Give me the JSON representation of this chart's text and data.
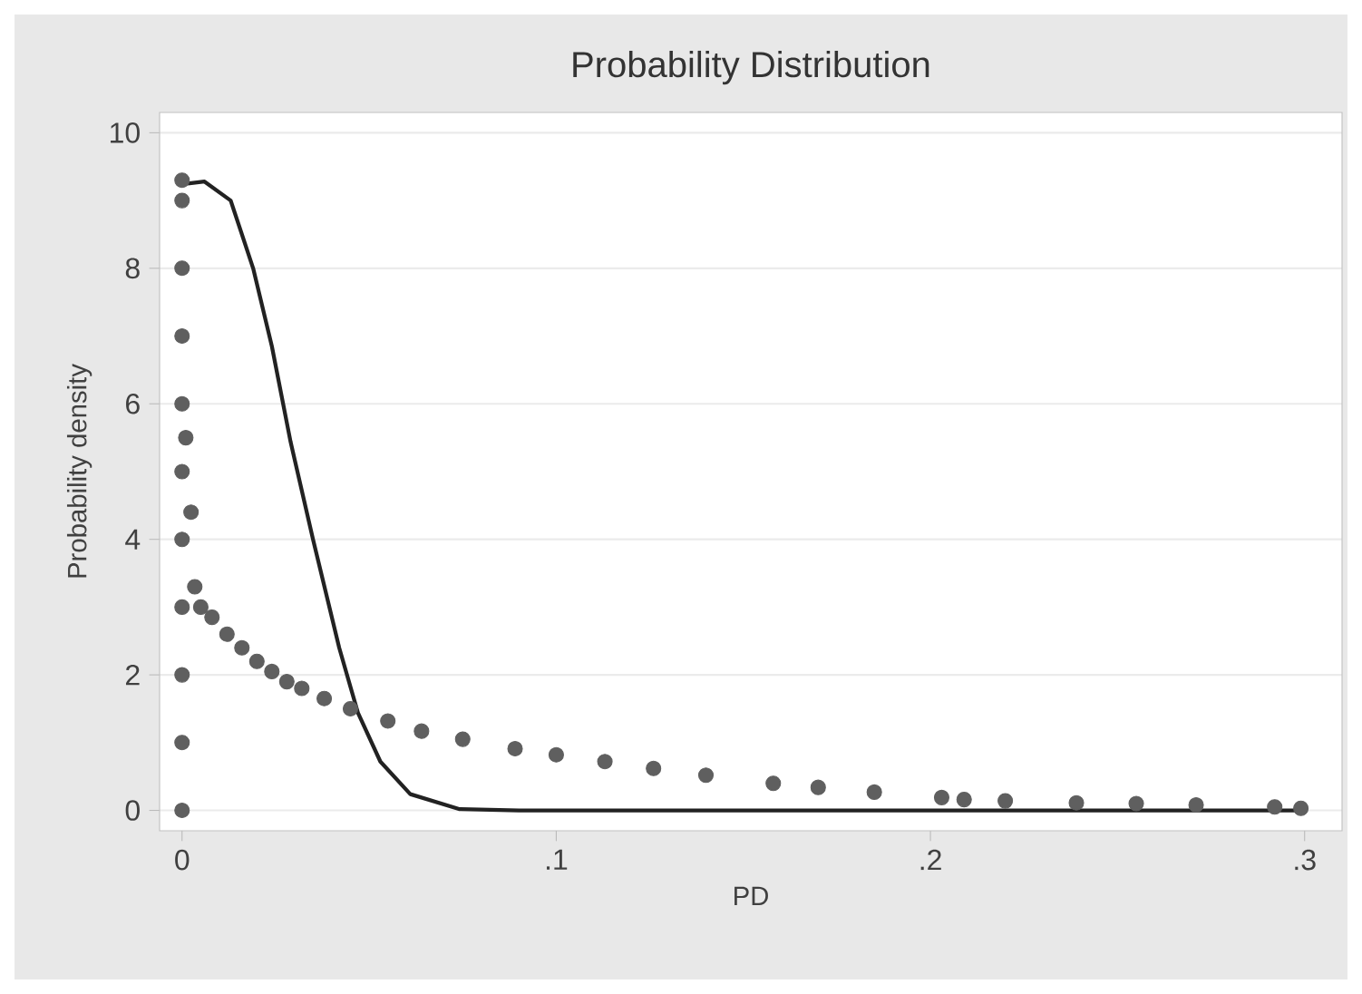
{
  "chart_data": {
    "type": "line",
    "title": "Probability Distribution",
    "xlabel": "PD",
    "ylabel": "Probability density",
    "xlim": [
      -0.006,
      0.31
    ],
    "ylim": [
      -0.3,
      10.3
    ],
    "xticks": [
      0,
      {
        "value": 0.1,
        "label": ".1"
      },
      {
        "value": 0.2,
        "label": ".2"
      },
      {
        "value": 0.3,
        "label": ".3"
      }
    ],
    "yticks": [
      0,
      2,
      4,
      6,
      8,
      10
    ],
    "grid": "y",
    "series": [
      {
        "type": "scatter",
        "marker": "circle",
        "color": "#5f5f5f",
        "x": [
          0,
          0,
          0,
          0,
          0,
          0,
          0,
          0,
          0,
          0,
          0,
          0.001,
          0.0024,
          0.0034,
          0.005,
          0.008,
          0.012,
          0.016,
          0.02,
          0.024,
          0.028,
          0.032,
          0.038,
          0.045,
          0.055,
          0.064,
          0.075,
          0.089,
          0.1,
          0.113,
          0.126,
          0.14,
          0.158,
          0.17,
          0.185,
          0.203,
          0.209,
          0.22,
          0.239,
          0.255,
          0.271,
          0.292,
          0.299
        ],
        "values": [
          0,
          1,
          2,
          3,
          4,
          5,
          6,
          7,
          8,
          9,
          9.3,
          5.5,
          4.4,
          3.3,
          3.0,
          2.85,
          2.6,
          2.4,
          2.2,
          2.05,
          1.9,
          1.8,
          1.65,
          1.5,
          1.32,
          1.17,
          1.05,
          0.91,
          0.82,
          0.72,
          0.62,
          0.52,
          0.4,
          0.34,
          0.27,
          0.19,
          0.16,
          0.14,
          0.11,
          0.1,
          0.08,
          0.05,
          0.03
        ]
      },
      {
        "marker": "none",
        "color": "#222222",
        "x": [
          0.0015,
          0.006,
          0.013,
          0.019,
          0.024,
          0.029,
          0.035,
          0.042,
          0.047,
          0.053,
          0.061,
          0.074,
          0.09,
          0.15,
          0.2,
          0.3
        ],
        "values": [
          9.25,
          9.28,
          9.0,
          8.0,
          6.85,
          5.44,
          4.0,
          2.4,
          1.44,
          0.72,
          0.24,
          0.02,
          0,
          0,
          0,
          0
        ]
      }
    ]
  }
}
